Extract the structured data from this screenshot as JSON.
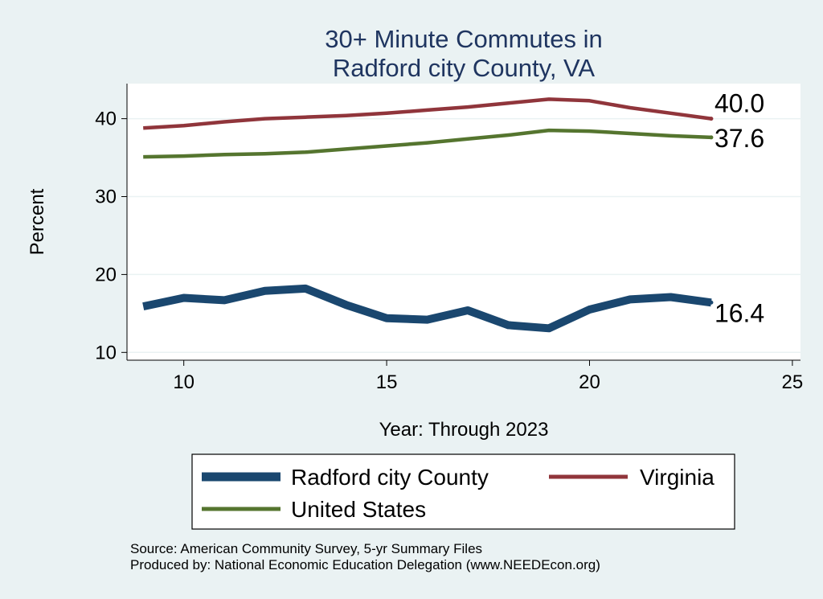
{
  "chart_data": {
    "type": "line",
    "title_lines": [
      "30+ Minute Commutes in",
      "Radford city County, VA"
    ],
    "xlabel": "Year: Through 2023",
    "ylabel": "Percent",
    "xlim": [
      8.6,
      25.2
    ],
    "ylim": [
      9,
      44.5
    ],
    "xticks": [
      10,
      15,
      20,
      25
    ],
    "yticks": [
      10,
      20,
      30,
      40
    ],
    "grid": true,
    "legend_position": "bottom",
    "series": [
      {
        "name": "Radford city County",
        "color": "#1a476f",
        "x": [
          9,
          10,
          11,
          12,
          13,
          14,
          15,
          16,
          17,
          18,
          19,
          20,
          21,
          22,
          23
        ],
        "values": [
          15.9,
          17.0,
          16.7,
          17.9,
          18.2,
          16.1,
          14.4,
          14.2,
          15.4,
          13.5,
          13.1,
          15.5,
          16.8,
          17.1,
          16.4
        ],
        "end_label": "16.4"
      },
      {
        "name": "Virginia",
        "color": "#90353b",
        "x": [
          9,
          10,
          11,
          12,
          13,
          14,
          15,
          16,
          17,
          18,
          19,
          20,
          21,
          22,
          23
        ],
        "values": [
          38.8,
          39.1,
          39.6,
          40.0,
          40.2,
          40.4,
          40.7,
          41.1,
          41.5,
          42.0,
          42.5,
          42.3,
          41.4,
          40.7,
          40.0
        ],
        "end_label": "40.0"
      },
      {
        "name": "United States",
        "color": "#55752f",
        "x": [
          9,
          10,
          11,
          12,
          13,
          14,
          15,
          16,
          17,
          18,
          19,
          20,
          21,
          22,
          23
        ],
        "values": [
          35.1,
          35.2,
          35.4,
          35.5,
          35.7,
          36.1,
          36.5,
          36.9,
          37.4,
          37.9,
          38.5,
          38.4,
          38.1,
          37.8,
          37.6
        ],
        "end_label": "37.6"
      }
    ],
    "footer": [
      "Source: American Community Survey, 5-yr Summary Files",
      "Produced by: National Economic Education Delegation (www.NEEDEcon.org)"
    ]
  }
}
